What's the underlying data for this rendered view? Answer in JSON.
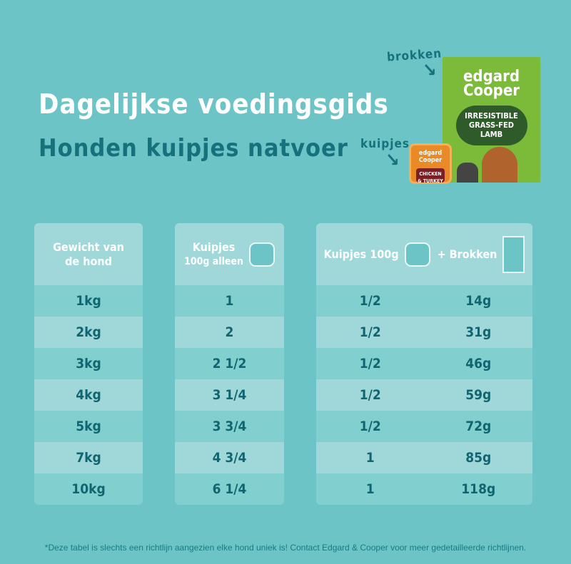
{
  "title": "Dagelijkse voedingsgids",
  "subtitle": "Honden kuipjes natvoer",
  "product_labels": {
    "kibble": "brokken",
    "tub": "kuipjes"
  },
  "product_images": {
    "bag": {
      "brand": "edgard Cooper",
      "name": "GRASS-FED LAMB",
      "tagline": "IRRESISTIBLE"
    },
    "tub": {
      "brand": "edgard Cooper",
      "name": "CHICKEN & TURKEY"
    }
  },
  "table": {
    "headers": {
      "weight": "Gewicht van de hond",
      "tubs_only_line1": "Kuipjes",
      "tubs_only_line2": "100g alleen",
      "combo_tubs": "Kuipjes 100g",
      "combo_plus": "+ Brokken"
    },
    "rows": [
      {
        "weight": "1kg",
        "tubs_only": "1",
        "combo_tubs": "1/2",
        "combo_kibble": "14g"
      },
      {
        "weight": "2kg",
        "tubs_only": "2",
        "combo_tubs": "1/2",
        "combo_kibble": "31g"
      },
      {
        "weight": "3kg",
        "tubs_only": "2 1/2",
        "combo_tubs": "1/2",
        "combo_kibble": "46g"
      },
      {
        "weight": "4kg",
        "tubs_only": "3 1/4",
        "combo_tubs": "1/2",
        "combo_kibble": "59g"
      },
      {
        "weight": "5kg",
        "tubs_only": "3 3/4",
        "combo_tubs": "1/2",
        "combo_kibble": "72g"
      },
      {
        "weight": "7kg",
        "tubs_only": "4 3/4",
        "combo_tubs": "1",
        "combo_kibble": "85g"
      },
      {
        "weight": "10kg",
        "tubs_only": "6 1/4",
        "combo_tubs": "1",
        "combo_kibble": "118g"
      }
    ]
  },
  "footer": "*Deze tabel is slechts een richtlijn aangezien elke hond uniek is! Contact Edgard & Cooper voor meer gedetailleerde richtlijnen.",
  "colors": {
    "background": "#6cc4c6",
    "title": "#ffffff",
    "subtitle": "#15717b",
    "row_dark": "#82cfd0",
    "row_light": "#a0d8da",
    "cell_text": "#0f6570"
  }
}
